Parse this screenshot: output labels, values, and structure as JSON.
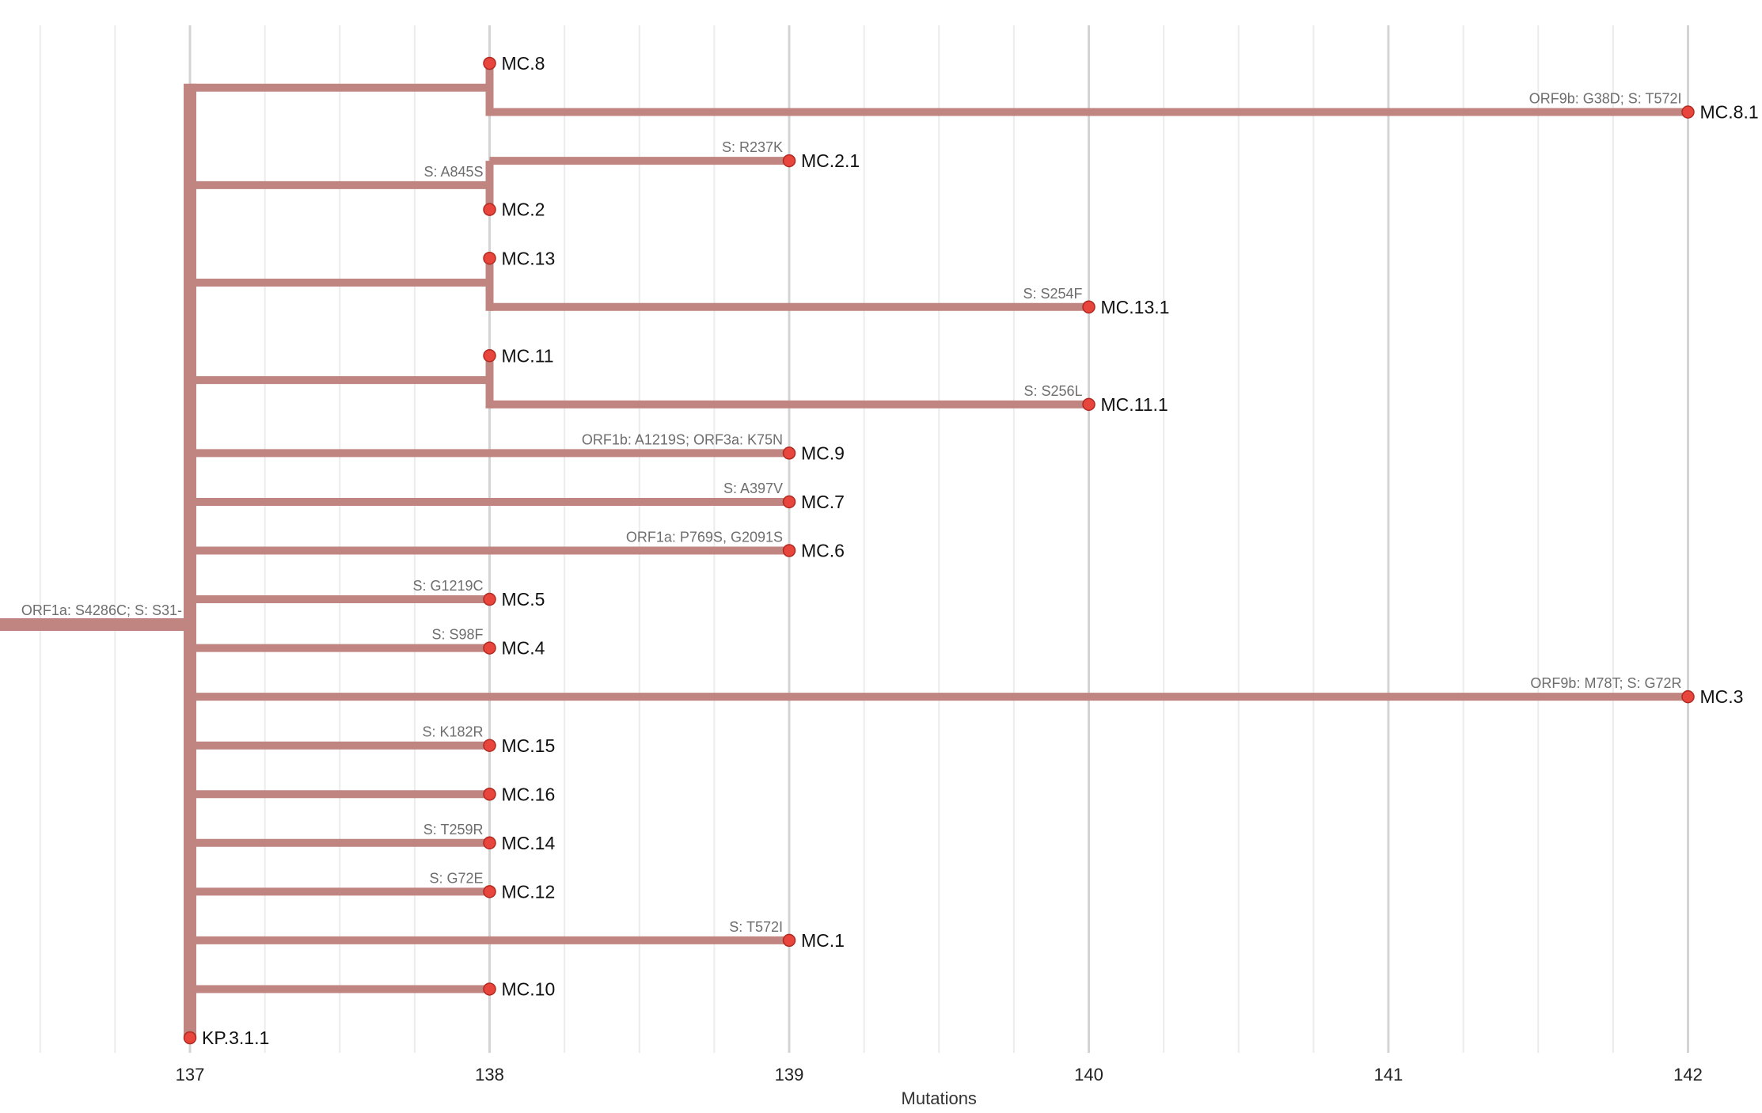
{
  "chart_data": {
    "type": "phylogenetic-tree",
    "xlabel": "Mutations",
    "xlim": [
      136.5,
      142.5
    ],
    "xticks": [
      137,
      138,
      139,
      140,
      141,
      142
    ],
    "branch_color": "#c08581",
    "node_color": "#e8453c",
    "node_stroke": "#b02a22",
    "grid_major_color": "#d4d4d4",
    "grid_minor_color": "#ececec",
    "root": {
      "value": 137,
      "mutations": "ORF1a: S4286C; S: S31-"
    },
    "groups": [
      {
        "parent_value": 138,
        "parent_mutations": "",
        "tips": [
          {
            "name": "MC.8",
            "value": 138,
            "mutations": ""
          },
          {
            "name": "MC.8.1",
            "value": 142,
            "mutations": "ORF9b: G38D; S: T572I"
          }
        ]
      },
      {
        "parent_value": 138,
        "parent_mutations": "S: A845S",
        "tips": [
          {
            "name": "MC.2.1",
            "value": 139,
            "mutations": "S: R237K"
          },
          {
            "name": "MC.2",
            "value": 138,
            "mutations": ""
          }
        ]
      },
      {
        "parent_value": 138,
        "parent_mutations": "",
        "tips": [
          {
            "name": "MC.13",
            "value": 138,
            "mutations": ""
          },
          {
            "name": "MC.13.1",
            "value": 140,
            "mutations": "S: S254F"
          }
        ]
      },
      {
        "parent_value": 138,
        "parent_mutations": "",
        "tips": [
          {
            "name": "MC.11",
            "value": 138,
            "mutations": ""
          },
          {
            "name": "MC.11.1",
            "value": 140,
            "mutations": "S: S256L"
          }
        ]
      },
      {
        "tip": {
          "name": "MC.9",
          "value": 139,
          "mutations": "ORF1b: A1219S; ORF3a: K75N"
        }
      },
      {
        "tip": {
          "name": "MC.7",
          "value": 139,
          "mutations": "S: A397V"
        }
      },
      {
        "tip": {
          "name": "MC.6",
          "value": 139,
          "mutations": "ORF1a: P769S, G2091S"
        }
      },
      {
        "tip": {
          "name": "MC.5",
          "value": 138,
          "mutations": "S: G1219C"
        }
      },
      {
        "tip": {
          "name": "MC.4",
          "value": 138,
          "mutations": "S: S98F"
        }
      },
      {
        "tip": {
          "name": "MC.3",
          "value": 142,
          "mutations": "ORF9b: M78T; S: G72R"
        }
      },
      {
        "tip": {
          "name": "MC.15",
          "value": 138,
          "mutations": "S: K182R"
        }
      },
      {
        "tip": {
          "name": "MC.16",
          "value": 138,
          "mutations": ""
        }
      },
      {
        "tip": {
          "name": "MC.14",
          "value": 138,
          "mutations": "S: T259R"
        }
      },
      {
        "tip": {
          "name": "MC.12",
          "value": 138,
          "mutations": "S: G72E"
        }
      },
      {
        "tip": {
          "name": "MC.1",
          "value": 139,
          "mutations": "S: T572I"
        }
      },
      {
        "tip": {
          "name": "MC.10",
          "value": 138,
          "mutations": ""
        }
      },
      {
        "tip": {
          "name": "KP.3.1.1",
          "value": 137,
          "mutations": ""
        }
      }
    ]
  }
}
